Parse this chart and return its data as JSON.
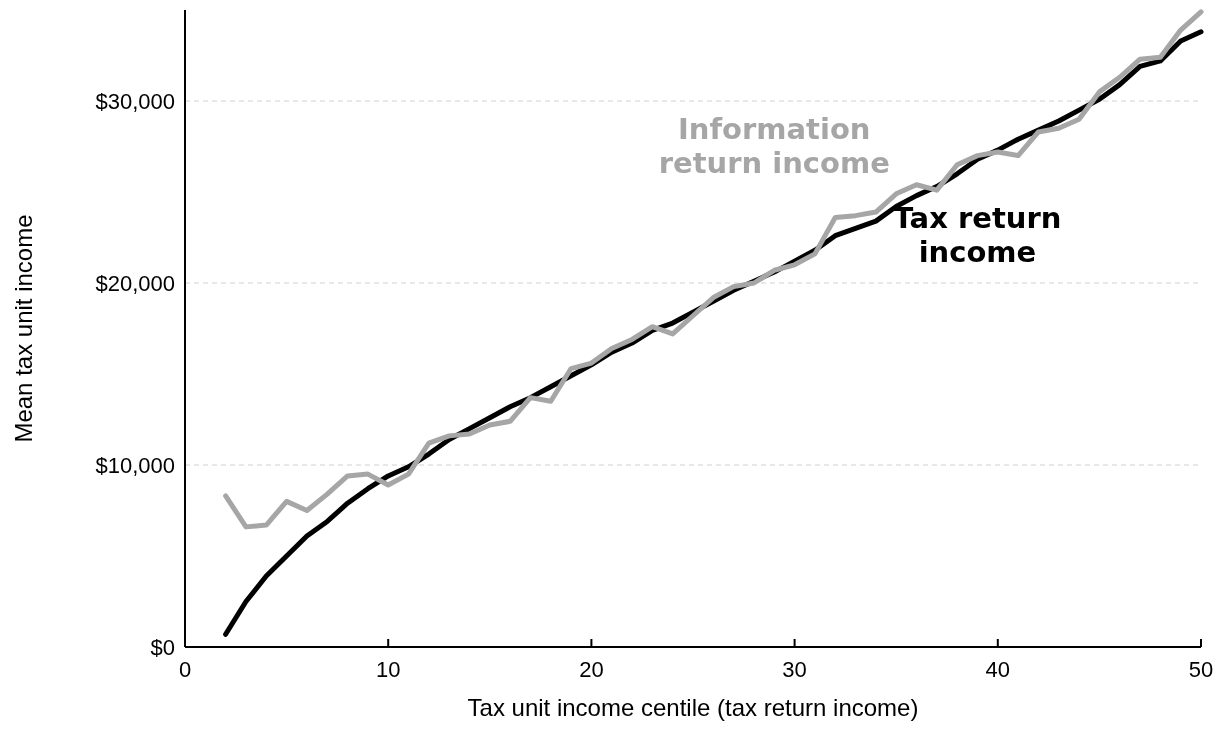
{
  "chart_data": {
    "type": "line",
    "xlabel": "Tax unit income centile (tax return income)",
    "ylabel": "Mean tax unit income",
    "x": [
      2,
      3,
      4,
      5,
      6,
      7,
      8,
      9,
      10,
      11,
      12,
      13,
      14,
      15,
      16,
      17,
      18,
      19,
      20,
      21,
      22,
      23,
      24,
      25,
      26,
      27,
      28,
      29,
      30,
      31,
      32,
      33,
      34,
      35,
      36,
      37,
      38,
      39,
      40,
      41,
      42,
      43,
      44,
      45,
      46,
      47,
      48,
      49,
      50
    ],
    "series": [
      {
        "name": "Tax return income",
        "color": "#000000",
        "values": [
          700,
          2500,
          3900,
          5000,
          6100,
          6900,
          7900,
          8700,
          9400,
          9900,
          10600,
          11400,
          12000,
          12600,
          13200,
          13700,
          14300,
          14900,
          15500,
          16200,
          16700,
          17400,
          17800,
          18400,
          19000,
          19600,
          20100,
          20600,
          21200,
          21800,
          22600,
          23000,
          23400,
          24200,
          24800,
          25300,
          26000,
          26800,
          27300,
          27900,
          28400,
          28900,
          29500,
          30100,
          30900,
          31900,
          32200,
          33300,
          33800
        ]
      },
      {
        "name": "Information return income",
        "color": "#a6a6a6",
        "values": [
          8300,
          6600,
          6700,
          8000,
          7500,
          8400,
          9400,
          9500,
          8900,
          9500,
          11200,
          11600,
          11700,
          12200,
          12400,
          13700,
          13500,
          15300,
          15600,
          16400,
          16900,
          17600,
          17200,
          18200,
          19200,
          19800,
          20000,
          20700,
          21000,
          21600,
          23600,
          23700,
          23900,
          24900,
          25400,
          25100,
          26500,
          27000,
          27200,
          27000,
          28300,
          28500,
          29000,
          30500,
          31300,
          32300,
          32400,
          33900,
          34900
        ]
      }
    ],
    "xlim": [
      0,
      50
    ],
    "xticks": [
      0,
      10,
      20,
      30,
      40,
      50
    ],
    "ylim": [
      0,
      35000
    ],
    "yticks": [
      {
        "value": 0,
        "label": "$0"
      },
      {
        "value": 10000,
        "label": "$10,000"
      },
      {
        "value": 20000,
        "label": "$20,000"
      },
      {
        "value": 30000,
        "label": "$30,000"
      }
    ],
    "grid": "y",
    "marker": "none",
    "line_style": "solid"
  }
}
